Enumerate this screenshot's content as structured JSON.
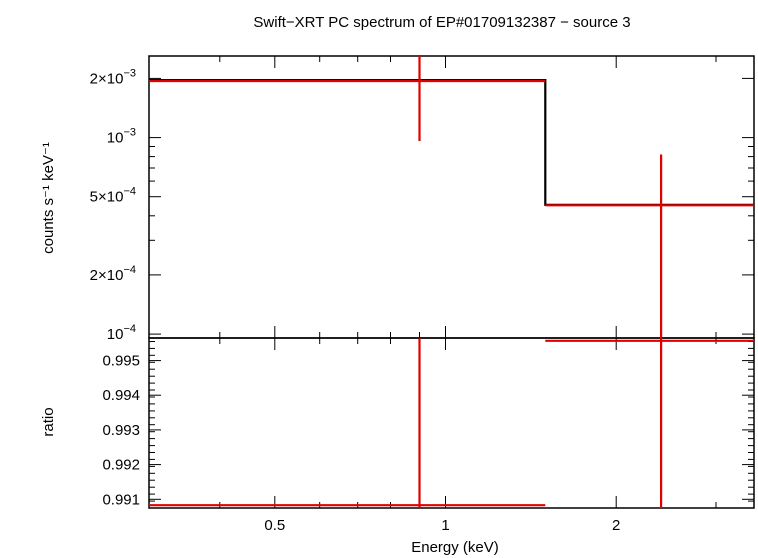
{
  "chart_data": [
    {
      "type": "line",
      "title": "Swift−XRT PC spectrum of EP#01709132387 − source 3",
      "xlabel": "Energy (keV)",
      "ylabel": "counts s⁻¹ keV⁻¹",
      "xscale": "log",
      "yscale": "log",
      "xlim": [
        0.3,
        3.5
      ],
      "ylim": [
        9.55e-05,
        0.0026
      ],
      "yticks": [
        {
          "value": 0.002,
          "mantissa": "2×10",
          "exp": "−3"
        },
        {
          "value": 0.001,
          "mantissa": "10",
          "exp": "−3"
        },
        {
          "value": 0.0005,
          "mantissa": "5×10",
          "exp": "−4"
        },
        {
          "value": 0.0002,
          "mantissa": "2×10",
          "exp": "−4"
        },
        {
          "value": 0.0001,
          "mantissa": "10",
          "exp": "−4"
        }
      ],
      "model": {
        "bins": [
          {
            "x_lo": 0.3,
            "x_hi": 1.5,
            "y": 0.00196
          },
          {
            "x_lo": 1.5,
            "x_hi": 3.5,
            "y": 0.000455
          }
        ]
      },
      "series": [
        {
          "points": [
            {
              "x": 0.9,
              "x_lo": 0.3,
              "x_hi": 1.5,
              "y": 0.00194,
              "y_lo": 0.00096,
              "y_hi": 0.0026
            },
            {
              "x": 2.4,
              "x_hi": 3.5,
              "x_lo": 1.5,
              "y": 0.000452,
              "y_lo": 9.55e-05,
              "y_hi": 0.00082
            }
          ]
        }
      ]
    },
    {
      "type": "line",
      "xlabel": "Energy (keV)",
      "ylabel": "ratio",
      "xscale": "log",
      "xlim": [
        0.3,
        3.5
      ],
      "ylim": [
        0.99075,
        0.99565
      ],
      "yticks": [
        0.991,
        0.992,
        0.993,
        0.994,
        0.995
      ],
      "xticks": [
        {
          "value": 0.5,
          "label": "0.5"
        },
        {
          "value": 1,
          "label": "1"
        },
        {
          "value": 2,
          "label": "2"
        }
      ],
      "series": [
        {
          "points": [
            {
              "x": 0.9,
              "x_lo": 0.3,
              "x_hi": 1.5,
              "y": 0.99083,
              "y_lo": 0.99075,
              "y_hi": 0.99565
            },
            {
              "x": 2.4,
              "x_lo": 1.5,
              "x_hi": 3.5,
              "y": 0.99557,
              "y_lo": 0.99075,
              "y_hi": 0.99565
            }
          ]
        }
      ]
    }
  ]
}
